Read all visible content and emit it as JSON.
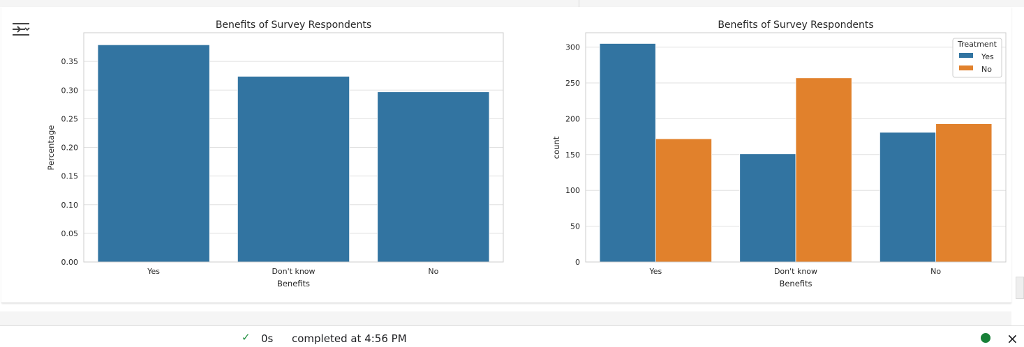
{
  "charts": [
    {
      "title": "Benefits of Survey Respondents",
      "xlabel": "Benefits",
      "ylabel": "Percentage"
    },
    {
      "title": "Benefits of Survey Respondents",
      "xlabel": "Benefits",
      "ylabel": "count",
      "legend_title": "Treatment"
    }
  ],
  "chart_data": [
    {
      "type": "bar",
      "title": "Benefits of Survey Respondents",
      "xlabel": "Benefits",
      "ylabel": "Percentage",
      "categories": [
        "Yes",
        "Don't know",
        "No"
      ],
      "values": [
        0.379,
        0.324,
        0.297
      ],
      "ylim": [
        0,
        0.4
      ],
      "yticks": [
        0.0,
        0.05,
        0.1,
        0.15,
        0.2,
        0.25,
        0.3,
        0.35
      ],
      "ytick_labels": [
        "0.00",
        "0.05",
        "0.10",
        "0.15",
        "0.20",
        "0.25",
        "0.30",
        "0.35"
      ],
      "grid": true,
      "color": "#3274a1"
    },
    {
      "type": "bar",
      "title": "Benefits of Survey Respondents",
      "xlabel": "Benefits",
      "ylabel": "count",
      "categories": [
        "Yes",
        "Don't know",
        "No"
      ],
      "series": [
        {
          "name": "Yes",
          "values": [
            305,
            151,
            181
          ],
          "color": "#3274a1"
        },
        {
          "name": "No",
          "values": [
            172,
            257,
            193
          ],
          "color": "#e1812c"
        }
      ],
      "ylim": [
        0,
        320
      ],
      "yticks": [
        0,
        50,
        100,
        150,
        200,
        250,
        300
      ],
      "ytick_labels": [
        "0",
        "50",
        "100",
        "150",
        "200",
        "250",
        "300"
      ],
      "legend_title": "Treatment",
      "legend_position": "top-right",
      "grid": true
    }
  ],
  "status": {
    "check": "✓",
    "duration": "0s",
    "message": "completed at 4:56 PM",
    "dot_color": "#188038",
    "close": "×"
  }
}
